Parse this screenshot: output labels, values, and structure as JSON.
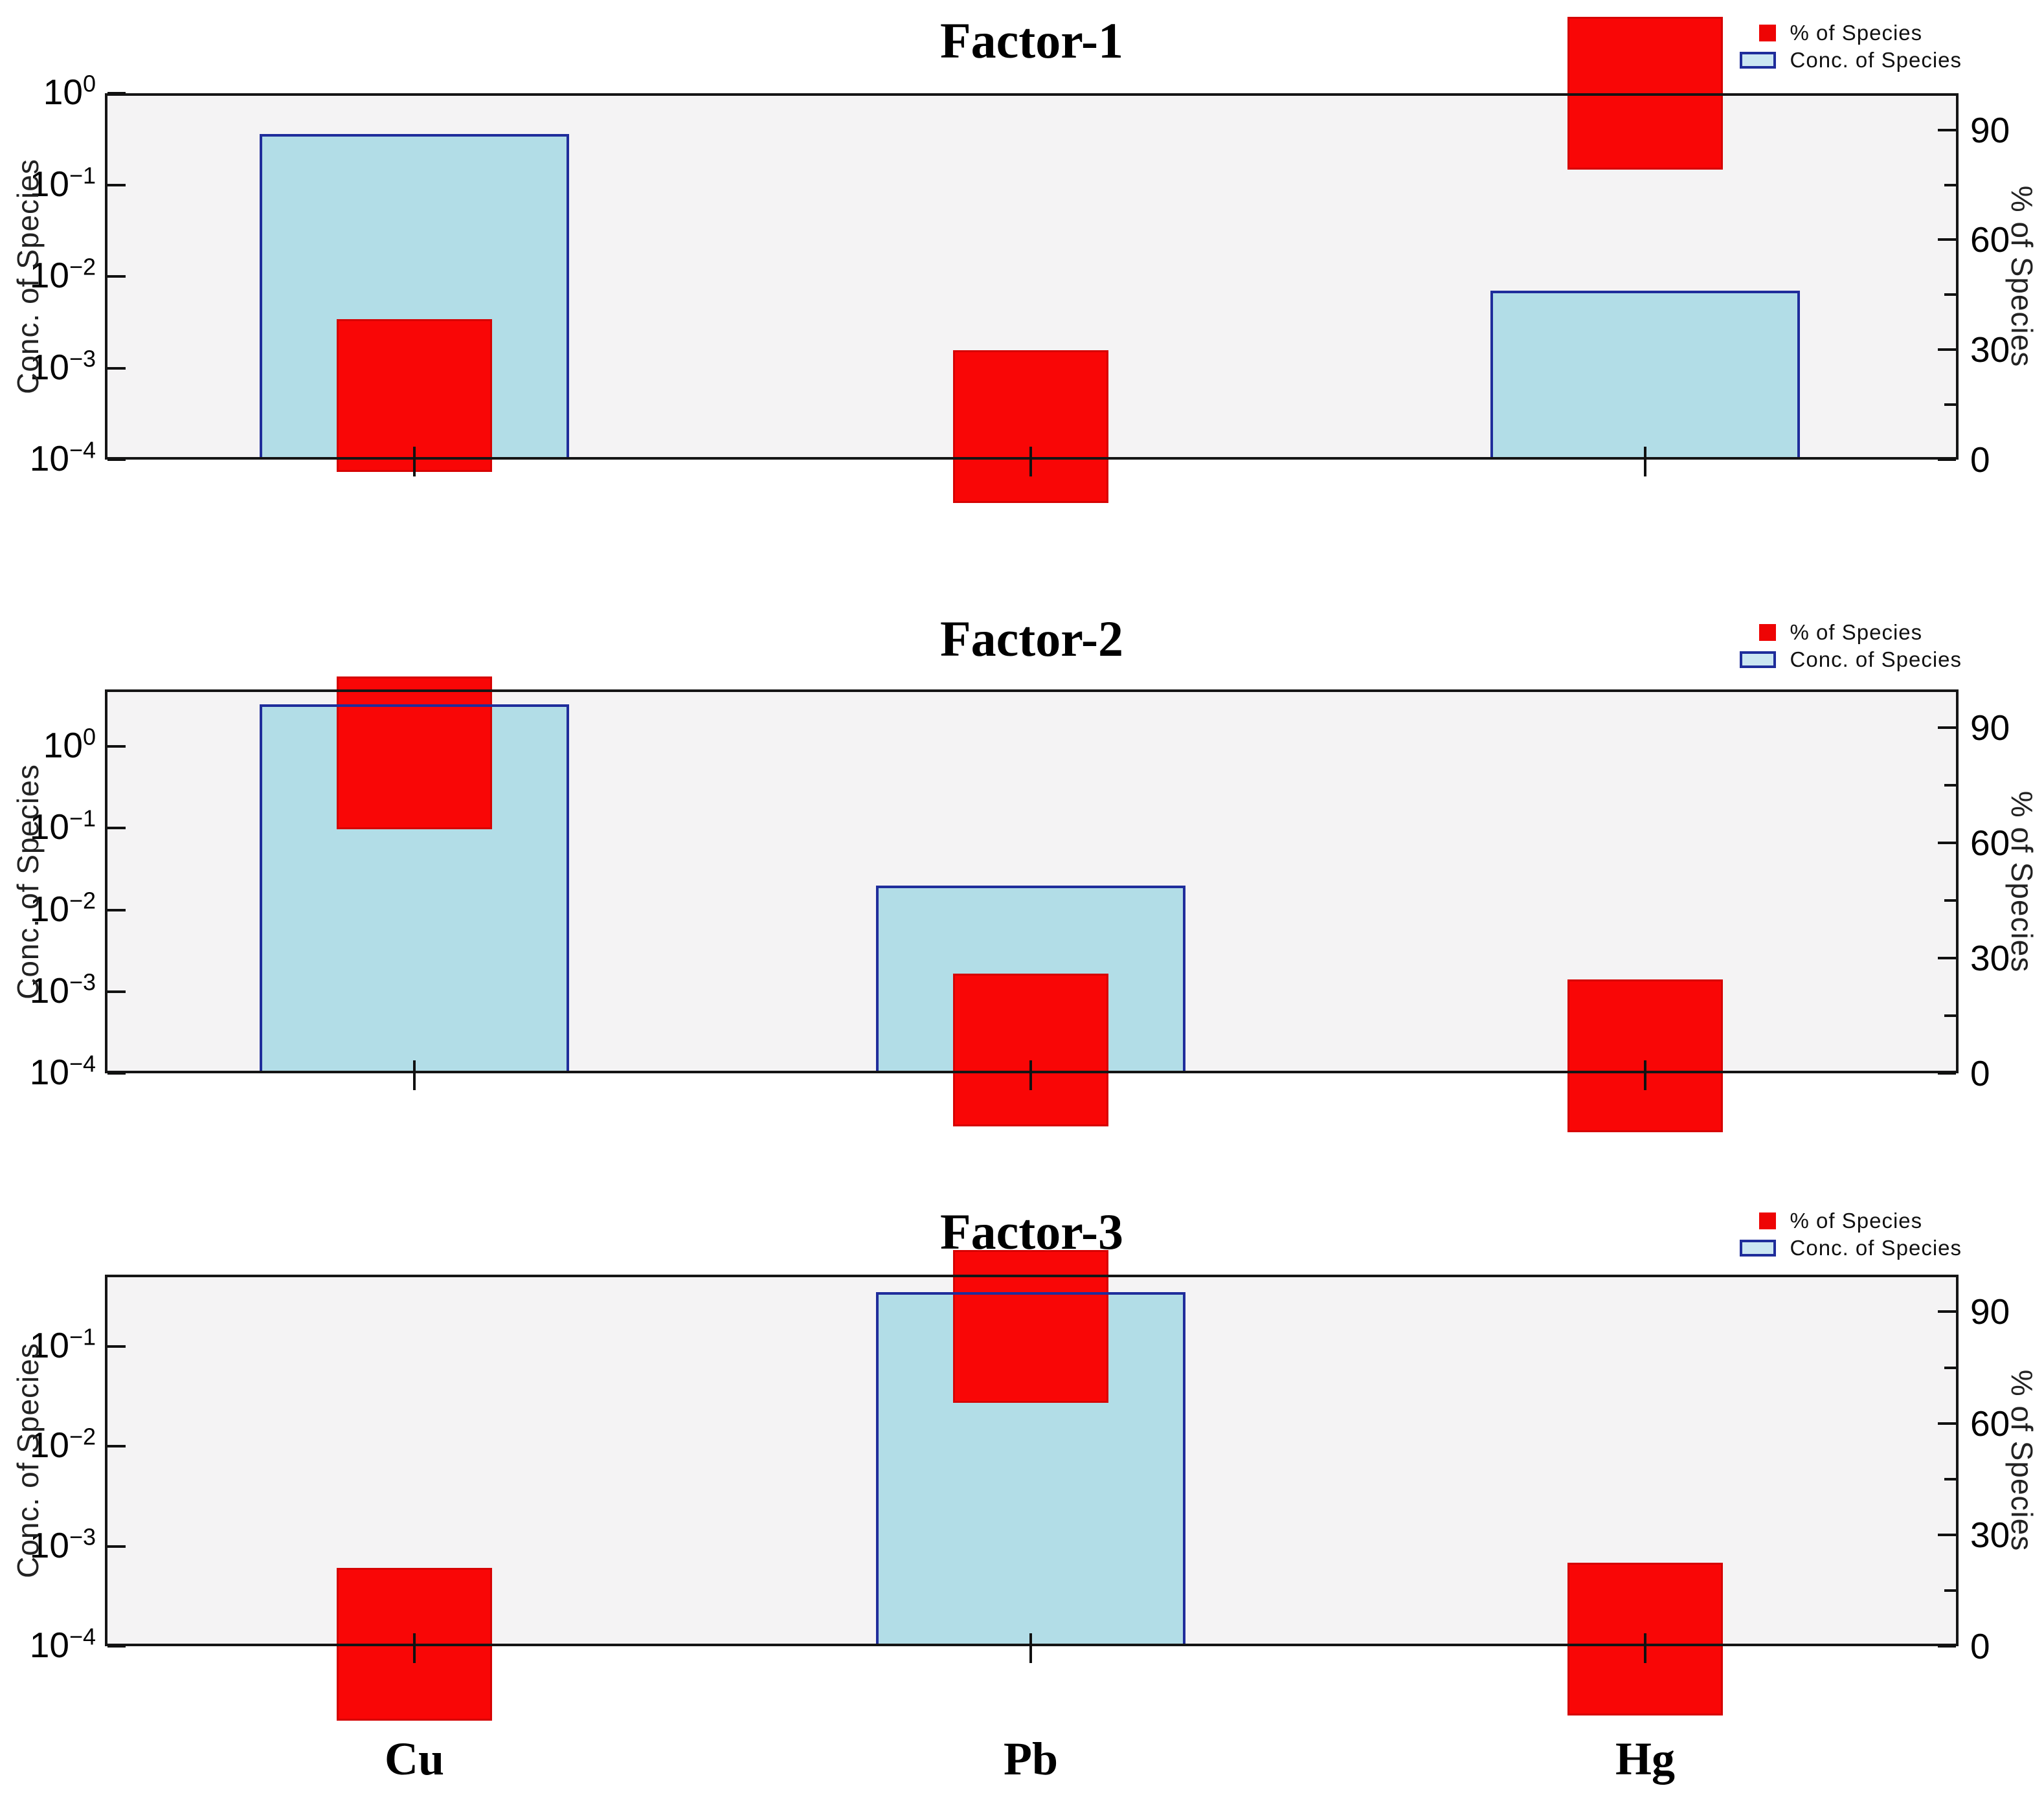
{
  "figure": {
    "kind": "factor-profile-plots",
    "x_axis_species": [
      "Cu",
      "Pb",
      "Hg"
    ]
  },
  "colors": {
    "pct_marker": "#f90606",
    "pct_marker_edge": "#b40000",
    "conc_bar_fill": "#b2dde7",
    "conc_bar_border": "#1f2d9b",
    "plot_background": "#f4f3f4",
    "frame": "#151515",
    "legend_conc_fill": "#cbe6f2"
  },
  "chart_data": [
    {
      "type": "bar",
      "title": "Factor-1",
      "categories": [
        "Cu",
        "Pb",
        "Hg"
      ],
      "series": [
        {
          "name": "Conc. of Species",
          "axis": "left",
          "style": "bar",
          "values": [
            0.36,
            null,
            0.007
          ]
        },
        {
          "name": "% of Species",
          "axis": "right",
          "style": "square-marker",
          "values": [
            17.5,
            9,
            100
          ]
        }
      ],
      "left_axis": {
        "label": "Conc. of Species",
        "scale": "log",
        "tick_exponents": [
          0,
          -1,
          -2,
          -3,
          -4
        ],
        "log_top": 0,
        "log_bottom": -4
      },
      "right_axis": {
        "label": "% of Species",
        "major_ticks": [
          0,
          30,
          60,
          90
        ],
        "minor_ticks": [
          15,
          45,
          75
        ],
        "range": [
          0,
          100
        ]
      },
      "legend": [
        "% of Species",
        "Conc. of Species"
      ],
      "grid": "off",
      "legend_position": "top-right"
    },
    {
      "type": "bar",
      "title": "Factor-2",
      "categories": [
        "Cu",
        "Pb",
        "Hg"
      ],
      "series": [
        {
          "name": "Conc. of Species",
          "axis": "left",
          "style": "bar",
          "values": [
            3.3,
            0.02,
            null
          ]
        },
        {
          "name": "% of Species",
          "axis": "right",
          "style": "square-marker",
          "values": [
            83.5,
            6,
            4.5
          ]
        }
      ],
      "left_axis": {
        "label": "Conc. of Species",
        "scale": "log",
        "tick_exponents": [
          0,
          -1,
          -2,
          -3,
          -4
        ],
        "log_top": 0.7,
        "log_bottom": -4
      },
      "right_axis": {
        "label": "% of Species",
        "major_ticks": [
          0,
          30,
          60,
          90
        ],
        "minor_ticks": [
          15,
          45,
          75
        ],
        "range": [
          0,
          100
        ]
      },
      "legend": [
        "% of Species",
        "Conc. of Species"
      ],
      "grid": "off",
      "legend_position": "top-right"
    },
    {
      "type": "bar",
      "title": "Factor-3",
      "categories": [
        "Cu",
        "Pb",
        "Hg"
      ],
      "series": [
        {
          "name": "Conc. of Species",
          "axis": "left",
          "style": "bar",
          "values": [
            null,
            0.35,
            null
          ]
        },
        {
          "name": "% of Species",
          "axis": "right",
          "style": "square-marker",
          "values": [
            0.5,
            86,
            2
          ]
        }
      ],
      "left_axis": {
        "label": "Conc. of Species",
        "scale": "log",
        "tick_exponents": [
          -1,
          -2,
          -3,
          -4
        ],
        "log_top": -0.28,
        "log_bottom": -4
      },
      "right_axis": {
        "label": "% of Species",
        "major_ticks": [
          0,
          30,
          60,
          90
        ],
        "minor_ticks": [
          15,
          45,
          75
        ],
        "range": [
          0,
          100
        ]
      },
      "legend": [
        "% of Species",
        "Conc. of Species"
      ],
      "grid": "off",
      "legend_position": "top-right"
    }
  ]
}
